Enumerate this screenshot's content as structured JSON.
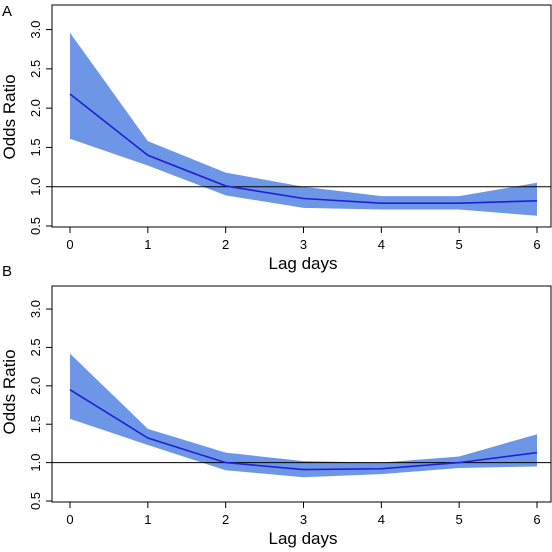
{
  "chart_data": [
    {
      "panel_label": "A",
      "type": "line",
      "xlabel": "Lag days",
      "ylabel": "Odds Ratio",
      "x": [
        0,
        1,
        2,
        3,
        4,
        5,
        6
      ],
      "xticks": [
        "0",
        "1",
        "2",
        "3",
        "4",
        "5",
        "6"
      ],
      "yticks": [
        "0.5",
        "1.0",
        "1.5",
        "2.0",
        "2.5",
        "3.0"
      ],
      "xlim": [
        0,
        6
      ],
      "ylim": [
        0.5,
        3.3
      ],
      "reference_line": 1.0,
      "series": [
        {
          "estimate": [
            2.18,
            1.4,
            1.01,
            0.85,
            0.79,
            0.79,
            0.82
          ],
          "lower": [
            1.61,
            1.27,
            0.89,
            0.73,
            0.71,
            0.71,
            0.63
          ],
          "upper": [
            2.96,
            1.58,
            1.18,
            1.0,
            0.88,
            0.88,
            1.05
          ]
        }
      ],
      "colors": {
        "line": "#1f1fd6",
        "band": "#6e96e6",
        "reference": "#000000"
      }
    },
    {
      "panel_label": "B",
      "type": "line",
      "xlabel": "Lag days",
      "ylabel": "Odds Ratio",
      "x": [
        0,
        1,
        2,
        3,
        4,
        5,
        6
      ],
      "xticks": [
        "0",
        "1",
        "2",
        "3",
        "4",
        "5",
        "6"
      ],
      "yticks": [
        "0.5",
        "1.0",
        "1.5",
        "2.0",
        "2.5",
        "3.0"
      ],
      "xlim": [
        0,
        6
      ],
      "ylim": [
        0.5,
        3.3
      ],
      "reference_line": 1.0,
      "series": [
        {
          "estimate": [
            1.95,
            1.32,
            1.0,
            0.91,
            0.92,
            1.0,
            1.13
          ],
          "lower": [
            1.57,
            1.23,
            0.9,
            0.81,
            0.85,
            0.93,
            0.95
          ],
          "upper": [
            2.42,
            1.44,
            1.13,
            1.02,
            1.0,
            1.08,
            1.37
          ]
        }
      ],
      "colors": {
        "line": "#1f1fd6",
        "band": "#6e96e6",
        "reference": "#000000"
      }
    }
  ]
}
